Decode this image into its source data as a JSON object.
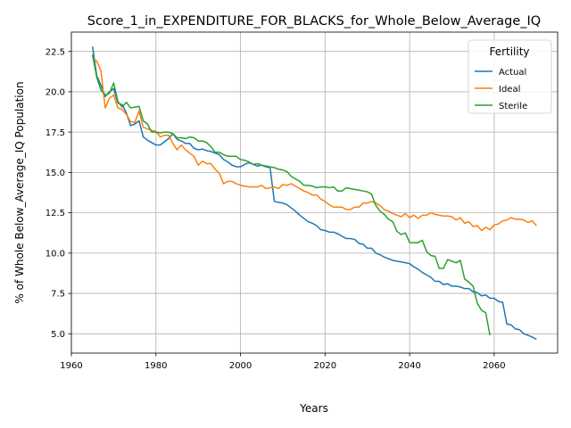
{
  "chart_data": {
    "type": "line",
    "title": "Score_1_in_EXPENDITURE_FOR_BLACKS_for_Whole_Below_Average_IQ",
    "xlabel": "Years",
    "ylabel": "% of Whole Below_Average_IQ Population",
    "xlim": [
      1960,
      2075
    ],
    "ylim": [
      3.8,
      23.7
    ],
    "xticks": [
      1960,
      1980,
      2000,
      2020,
      2040,
      2060
    ],
    "yticks": [
      5.0,
      7.5,
      10.0,
      12.5,
      15.0,
      17.5,
      20.0,
      22.5
    ],
    "xtick_labels": [
      "1960",
      "1980",
      "2000",
      "2020",
      "2040",
      "2060"
    ],
    "ytick_labels": [
      "5.0",
      "7.5",
      "10.0",
      "12.5",
      "15.0",
      "17.5",
      "20.0",
      "22.5"
    ],
    "grid": true,
    "legend": {
      "title": "Fertility",
      "placement": "top-right"
    },
    "series": [
      {
        "name": "Actual",
        "color": "#1f77b4",
        "points": [
          [
            1965,
            22.8
          ],
          [
            1966,
            21.0
          ],
          [
            1967,
            20.4
          ],
          [
            1968,
            19.7
          ],
          [
            1969,
            20.0
          ],
          [
            1970,
            20.2
          ],
          [
            1971,
            19.3
          ],
          [
            1972,
            19.2
          ],
          [
            1973,
            18.7
          ],
          [
            1974,
            17.9
          ],
          [
            1975,
            18.0
          ],
          [
            1976,
            18.2
          ],
          [
            1977,
            17.2
          ],
          [
            1978,
            17.0
          ],
          [
            1979,
            16.85
          ],
          [
            1980,
            16.7
          ],
          [
            1981,
            16.7
          ],
          [
            1982,
            16.9
          ],
          [
            1983,
            17.1
          ],
          [
            1984,
            17.4
          ],
          [
            1985,
            17.05
          ],
          [
            1986,
            16.95
          ],
          [
            1987,
            16.8
          ],
          [
            1988,
            16.8
          ],
          [
            1989,
            16.5
          ],
          [
            1990,
            16.4
          ],
          [
            1991,
            16.45
          ],
          [
            1992,
            16.35
          ],
          [
            1993,
            16.3
          ],
          [
            1994,
            16.2
          ],
          [
            1995,
            16.1
          ],
          [
            1996,
            15.8
          ],
          [
            1997,
            15.65
          ],
          [
            1998,
            15.45
          ],
          [
            1999,
            15.35
          ],
          [
            2000,
            15.35
          ],
          [
            2001,
            15.5
          ],
          [
            2002,
            15.6
          ],
          [
            2003,
            15.5
          ],
          [
            2004,
            15.4
          ],
          [
            2005,
            15.45
          ],
          [
            2006,
            15.35
          ],
          [
            2007,
            15.3
          ],
          [
            2008,
            13.2
          ],
          [
            2009,
            13.15
          ],
          [
            2010,
            13.1
          ],
          [
            2011,
            13.0
          ],
          [
            2012,
            12.8
          ],
          [
            2013,
            12.6
          ],
          [
            2014,
            12.35
          ],
          [
            2015,
            12.15
          ],
          [
            2016,
            11.95
          ],
          [
            2017,
            11.85
          ],
          [
            2018,
            11.7
          ],
          [
            2019,
            11.45
          ],
          [
            2020,
            11.4
          ],
          [
            2021,
            11.3
          ],
          [
            2022,
            11.3
          ],
          [
            2023,
            11.2
          ],
          [
            2024,
            11.05
          ],
          [
            2025,
            10.9
          ],
          [
            2026,
            10.9
          ],
          [
            2027,
            10.85
          ],
          [
            2028,
            10.6
          ],
          [
            2029,
            10.55
          ],
          [
            2030,
            10.3
          ],
          [
            2031,
            10.3
          ],
          [
            2032,
            10.0
          ],
          [
            2033,
            9.9
          ],
          [
            2034,
            9.75
          ],
          [
            2035,
            9.65
          ],
          [
            2036,
            9.55
          ],
          [
            2037,
            9.5
          ],
          [
            2038,
            9.45
          ],
          [
            2039,
            9.4
          ],
          [
            2040,
            9.35
          ],
          [
            2041,
            9.15
          ],
          [
            2042,
            9.0
          ],
          [
            2043,
            8.8
          ],
          [
            2044,
            8.65
          ],
          [
            2045,
            8.5
          ],
          [
            2046,
            8.25
          ],
          [
            2047,
            8.25
          ],
          [
            2048,
            8.05
          ],
          [
            2049,
            8.1
          ],
          [
            2050,
            7.95
          ],
          [
            2051,
            7.95
          ],
          [
            2052,
            7.9
          ],
          [
            2053,
            7.8
          ],
          [
            2054,
            7.8
          ],
          [
            2055,
            7.6
          ],
          [
            2056,
            7.55
          ],
          [
            2057,
            7.35
          ],
          [
            2058,
            7.4
          ],
          [
            2059,
            7.2
          ],
          [
            2060,
            7.2
          ],
          [
            2061,
            7.0
          ],
          [
            2062,
            6.95
          ],
          [
            2063,
            5.6
          ],
          [
            2064,
            5.55
          ],
          [
            2065,
            5.3
          ],
          [
            2066,
            5.25
          ],
          [
            2067,
            5.0
          ],
          [
            2068,
            4.9
          ],
          [
            2069,
            4.8
          ],
          [
            2070,
            4.65
          ]
        ]
      },
      {
        "name": "Ideal",
        "color": "#ff7f0e",
        "points": [
          [
            1965,
            22.1
          ],
          [
            1966,
            21.9
          ],
          [
            1967,
            21.3
          ],
          [
            1968,
            19.0
          ],
          [
            1969,
            19.6
          ],
          [
            1970,
            19.8
          ],
          [
            1971,
            19.0
          ],
          [
            1972,
            18.9
          ],
          [
            1973,
            18.6
          ],
          [
            1974,
            18.15
          ],
          [
            1975,
            18.1
          ],
          [
            1976,
            18.8
          ],
          [
            1977,
            17.8
          ],
          [
            1978,
            17.7
          ],
          [
            1979,
            17.6
          ],
          [
            1980,
            17.55
          ],
          [
            1981,
            17.2
          ],
          [
            1982,
            17.3
          ],
          [
            1983,
            17.3
          ],
          [
            1984,
            16.8
          ],
          [
            1985,
            16.4
          ],
          [
            1986,
            16.7
          ],
          [
            1987,
            16.4
          ],
          [
            1988,
            16.2
          ],
          [
            1989,
            16.0
          ],
          [
            1990,
            15.45
          ],
          [
            1991,
            15.7
          ],
          [
            1992,
            15.55
          ],
          [
            1993,
            15.55
          ],
          [
            1994,
            15.2
          ],
          [
            1995,
            14.95
          ],
          [
            1996,
            14.3
          ],
          [
            1997,
            14.45
          ],
          [
            1998,
            14.45
          ],
          [
            1999,
            14.3
          ],
          [
            2000,
            14.2
          ],
          [
            2001,
            14.15
          ],
          [
            2002,
            14.1
          ],
          [
            2003,
            14.1
          ],
          [
            2004,
            14.1
          ],
          [
            2005,
            14.2
          ],
          [
            2006,
            14.0
          ],
          [
            2007,
            14.05
          ],
          [
            2008,
            14.1
          ],
          [
            2009,
            14.0
          ],
          [
            2010,
            14.25
          ],
          [
            2011,
            14.2
          ],
          [
            2012,
            14.3
          ],
          [
            2013,
            14.15
          ],
          [
            2014,
            14.0
          ],
          [
            2015,
            13.85
          ],
          [
            2016,
            13.75
          ],
          [
            2017,
            13.6
          ],
          [
            2018,
            13.6
          ],
          [
            2019,
            13.35
          ],
          [
            2020,
            13.2
          ],
          [
            2021,
            13.0
          ],
          [
            2022,
            12.85
          ],
          [
            2023,
            12.85
          ],
          [
            2024,
            12.85
          ],
          [
            2025,
            12.7
          ],
          [
            2026,
            12.7
          ],
          [
            2027,
            12.85
          ],
          [
            2028,
            12.85
          ],
          [
            2029,
            13.1
          ],
          [
            2030,
            13.1
          ],
          [
            2031,
            13.2
          ],
          [
            2032,
            13.1
          ],
          [
            2033,
            12.95
          ],
          [
            2034,
            12.7
          ],
          [
            2035,
            12.6
          ],
          [
            2036,
            12.45
          ],
          [
            2037,
            12.35
          ],
          [
            2038,
            12.25
          ],
          [
            2039,
            12.45
          ],
          [
            2040,
            12.2
          ],
          [
            2041,
            12.35
          ],
          [
            2042,
            12.15
          ],
          [
            2043,
            12.35
          ],
          [
            2044,
            12.35
          ],
          [
            2045,
            12.5
          ],
          [
            2046,
            12.4
          ],
          [
            2047,
            12.35
          ],
          [
            2048,
            12.3
          ],
          [
            2049,
            12.3
          ],
          [
            2050,
            12.25
          ],
          [
            2051,
            12.05
          ],
          [
            2052,
            12.2
          ],
          [
            2053,
            11.85
          ],
          [
            2054,
            11.95
          ],
          [
            2055,
            11.65
          ],
          [
            2056,
            11.7
          ],
          [
            2057,
            11.4
          ],
          [
            2058,
            11.6
          ],
          [
            2059,
            11.45
          ],
          [
            2060,
            11.75
          ],
          [
            2061,
            11.8
          ],
          [
            2062,
            12.0
          ],
          [
            2063,
            12.05
          ],
          [
            2064,
            12.2
          ],
          [
            2065,
            12.1
          ],
          [
            2066,
            12.1
          ],
          [
            2067,
            12.05
          ],
          [
            2068,
            11.9
          ],
          [
            2069,
            12.0
          ],
          [
            2070,
            11.7
          ]
        ]
      },
      {
        "name": "Sterile",
        "color": "#2ca02c",
        "points": [
          [
            1965,
            22.3
          ],
          [
            1966,
            20.9
          ],
          [
            1967,
            20.1
          ],
          [
            1968,
            19.8
          ],
          [
            1969,
            19.9
          ],
          [
            1970,
            20.55
          ],
          [
            1971,
            19.4
          ],
          [
            1972,
            19.05
          ],
          [
            1973,
            19.35
          ],
          [
            1974,
            19.0
          ],
          [
            1975,
            19.05
          ],
          [
            1976,
            19.1
          ],
          [
            1977,
            18.2
          ],
          [
            1978,
            18.0
          ],
          [
            1979,
            17.5
          ],
          [
            1980,
            17.5
          ],
          [
            1981,
            17.45
          ],
          [
            1982,
            17.5
          ],
          [
            1983,
            17.5
          ],
          [
            1984,
            17.4
          ],
          [
            1985,
            17.15
          ],
          [
            1986,
            17.15
          ],
          [
            1987,
            17.1
          ],
          [
            1988,
            17.2
          ],
          [
            1989,
            17.15
          ],
          [
            1990,
            16.95
          ],
          [
            1991,
            16.95
          ],
          [
            1992,
            16.85
          ],
          [
            1993,
            16.6
          ],
          [
            1994,
            16.25
          ],
          [
            1995,
            16.25
          ],
          [
            1996,
            16.1
          ],
          [
            1997,
            16.0
          ],
          [
            1998,
            16.0
          ],
          [
            1999,
            16.0
          ],
          [
            2000,
            15.8
          ],
          [
            2001,
            15.75
          ],
          [
            2002,
            15.65
          ],
          [
            2003,
            15.5
          ],
          [
            2004,
            15.55
          ],
          [
            2005,
            15.45
          ],
          [
            2006,
            15.4
          ],
          [
            2007,
            15.35
          ],
          [
            2008,
            15.3
          ],
          [
            2009,
            15.2
          ],
          [
            2010,
            15.15
          ],
          [
            2011,
            15.05
          ],
          [
            2012,
            14.75
          ],
          [
            2013,
            14.6
          ],
          [
            2014,
            14.45
          ],
          [
            2015,
            14.2
          ],
          [
            2016,
            14.2
          ],
          [
            2017,
            14.15
          ],
          [
            2018,
            14.05
          ],
          [
            2019,
            14.1
          ],
          [
            2020,
            14.1
          ],
          [
            2021,
            14.05
          ],
          [
            2022,
            14.1
          ],
          [
            2023,
            13.85
          ],
          [
            2024,
            13.85
          ],
          [
            2025,
            14.05
          ],
          [
            2026,
            14.0
          ],
          [
            2027,
            13.95
          ],
          [
            2028,
            13.9
          ],
          [
            2029,
            13.85
          ],
          [
            2030,
            13.8
          ],
          [
            2031,
            13.65
          ],
          [
            2032,
            12.95
          ],
          [
            2033,
            12.6
          ],
          [
            2034,
            12.4
          ],
          [
            2035,
            12.1
          ],
          [
            2036,
            11.95
          ],
          [
            2037,
            11.35
          ],
          [
            2038,
            11.15
          ],
          [
            2039,
            11.25
          ],
          [
            2040,
            10.65
          ],
          [
            2041,
            10.65
          ],
          [
            2042,
            10.65
          ],
          [
            2043,
            10.8
          ],
          [
            2044,
            10.1
          ],
          [
            2045,
            9.85
          ],
          [
            2046,
            9.8
          ],
          [
            2047,
            9.05
          ],
          [
            2048,
            9.05
          ],
          [
            2049,
            9.6
          ],
          [
            2050,
            9.5
          ],
          [
            2051,
            9.4
          ],
          [
            2052,
            9.55
          ],
          [
            2053,
            8.4
          ],
          [
            2054,
            8.2
          ],
          [
            2055,
            7.95
          ],
          [
            2056,
            6.9
          ],
          [
            2057,
            6.45
          ],
          [
            2058,
            6.3
          ],
          [
            2059,
            4.9
          ]
        ]
      }
    ]
  }
}
